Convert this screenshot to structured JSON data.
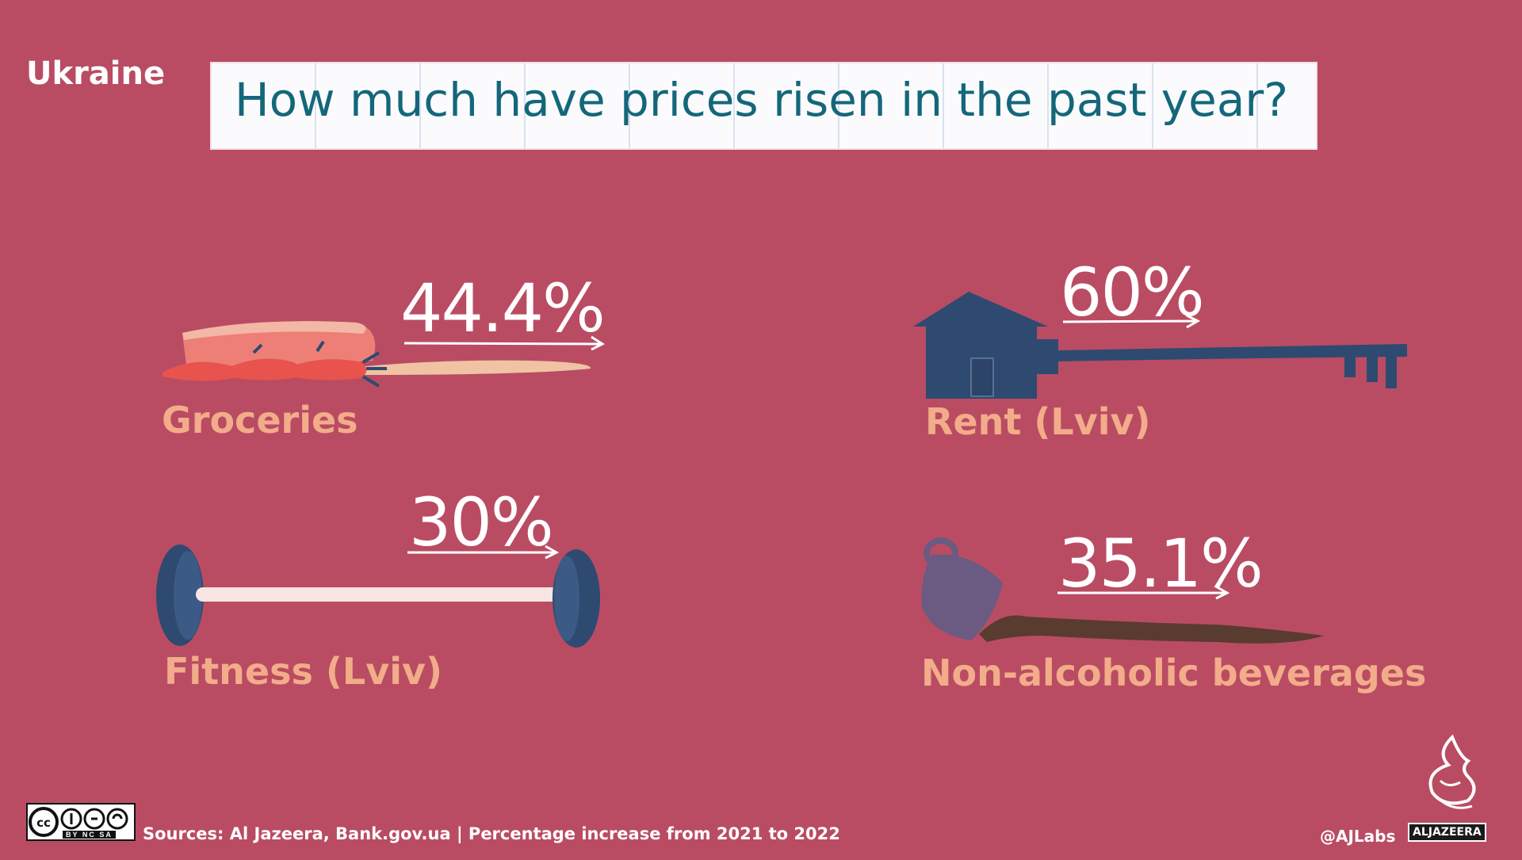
{
  "header": {
    "country": "Ukraine",
    "title": "How much have prices risen in the past year?"
  },
  "chart_data": {
    "type": "table",
    "title": "How much have prices risen in the past year?",
    "subtitle": "Ukraine",
    "unit": "Percentage increase from 2021 to 2022",
    "categories": [
      "Groceries",
      "Rent (Lviv)",
      "Fitness (Lviv)",
      "Non-alcoholic beverages"
    ],
    "values": [
      44.4,
      60,
      30,
      35.1
    ],
    "value_labels": [
      "44.4%",
      "60%",
      "30%",
      "35.1%"
    ]
  },
  "footer": {
    "sources": "Sources: Al Jazeera, Bank.gov.ua | Percentage increase from 2021 to 2022",
    "handle": "@AJLabs",
    "license_label": "BY  NC  SA",
    "brand": "ALJAZEERA"
  },
  "colors": {
    "background": "#b94c63",
    "title_text": "#14677a",
    "category_text": "#f2ac8a",
    "icon_blue": "#2e4a70"
  },
  "icons": [
    "bread-carrot-icon",
    "house-key-icon",
    "barbell-icon",
    "spilled-cup-icon",
    "cc-license-icon",
    "aljazeera-logo-icon"
  ]
}
